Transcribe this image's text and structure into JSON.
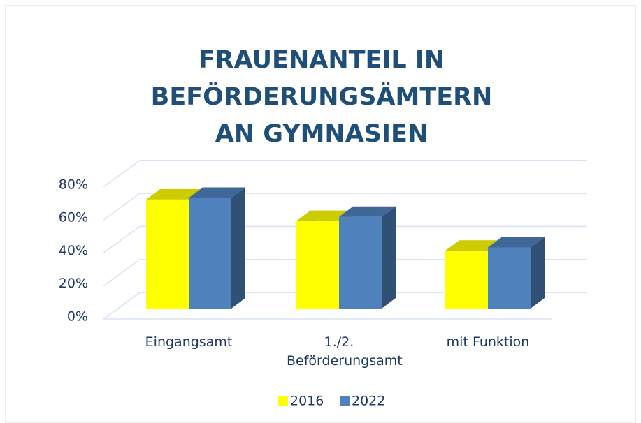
{
  "chart_data": {
    "type": "bar3d",
    "title": "FRAUENANTEIL IN BEFÖRDERUNGSÄMTERN AN GYMNASIEN",
    "categories": [
      "Eingangsamt",
      "1./2. Beförderungsamt",
      "mit Funktion"
    ],
    "series": [
      {
        "name": "2016",
        "color": "#ffff00",
        "values": [
          66,
          53,
          35
        ]
      },
      {
        "name": "2022",
        "color": "#4f81bd",
        "values": [
          67,
          55.5,
          37
        ]
      }
    ],
    "ylim": [
      0,
      80
    ],
    "yticks": [
      {
        "value": 0,
        "label": "0%"
      },
      {
        "value": 20,
        "label": "20%"
      },
      {
        "value": 40,
        "label": "40%"
      },
      {
        "value": 60,
        "label": "60%"
      },
      {
        "value": 80,
        "label": "80%"
      }
    ],
    "grid": true,
    "legend": "bottom"
  }
}
